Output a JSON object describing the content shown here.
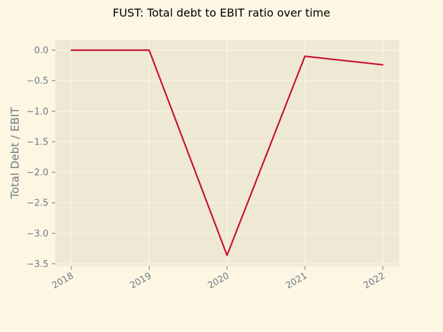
{
  "chart_data": {
    "type": "line",
    "title": "FUST: Total debt to EBIT ratio over time",
    "xlabel": "",
    "ylabel": "Total Debt / EBIT",
    "categories": [
      "2018",
      "2019",
      "2020",
      "2021",
      "2022"
    ],
    "series": [
      {
        "values": [
          0.0,
          0.0,
          -3.36,
          -0.1,
          -0.24
        ]
      }
    ],
    "ylim": [
      -3.5,
      0.15
    ],
    "yticks": [
      0.0,
      -0.5,
      -1.0,
      -1.5,
      -2.0,
      -2.5,
      -3.0,
      -3.5
    ],
    "ytick_labels": [
      "0.0",
      "−0.5",
      "−1.0",
      "−1.5",
      "−2.0",
      "−2.5",
      "−3.0",
      "−3.5"
    ],
    "grid": true,
    "colors": {
      "background": "#fdf6e3",
      "plot_area": "#eee8d5",
      "grid": "#fdf6e3",
      "line": "#c8102e",
      "tick_text": "#6e7b85"
    }
  }
}
